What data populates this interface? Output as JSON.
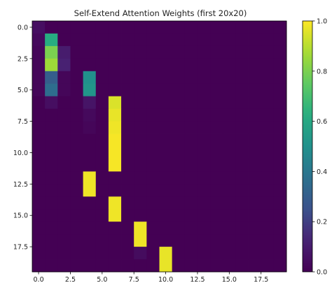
{
  "chart_data": {
    "type": "heatmap",
    "title": "Self-Extend Attention Weights (first 20x20)",
    "xlabel": "",
    "ylabel": "",
    "rows": 20,
    "cols": 20,
    "colormap": "viridis",
    "vmin": 0.0,
    "vmax": 1.0,
    "x_ticks": [
      "0.0",
      "2.5",
      "5.0",
      "7.5",
      "10.0",
      "12.5",
      "15.0",
      "17.5"
    ],
    "x_tick_values": [
      0.0,
      2.5,
      5.0,
      7.5,
      10.0,
      12.5,
      15.0,
      17.5
    ],
    "y_ticks": [
      "0.0",
      "2.5",
      "5.0",
      "7.5",
      "10.0",
      "12.5",
      "15.0",
      "17.5"
    ],
    "y_tick_values": [
      0.0,
      2.5,
      5.0,
      7.5,
      10.0,
      12.5,
      15.0,
      17.5
    ],
    "colorbar_ticks": [
      "0.0",
      "0.2",
      "0.4",
      "0.6",
      "0.8",
      "1.0"
    ],
    "colorbar_tick_values": [
      0.0,
      0.2,
      0.4,
      0.6,
      0.8,
      1.0
    ],
    "matrix": [
      [
        0.05,
        0.0,
        0.0,
        0.0,
        0.0,
        0.0,
        0.0,
        0.0,
        0.0,
        0.0,
        0.0,
        0.0,
        0.0,
        0.0,
        0.0,
        0.0,
        0.0,
        0.0,
        0.0,
        0.0
      ],
      [
        0.03,
        0.62,
        0.0,
        0.0,
        0.0,
        0.0,
        0.0,
        0.0,
        0.0,
        0.0,
        0.0,
        0.0,
        0.0,
        0.0,
        0.0,
        0.0,
        0.0,
        0.0,
        0.0,
        0.0
      ],
      [
        0.02,
        0.8,
        0.1,
        0.0,
        0.0,
        0.0,
        0.0,
        0.0,
        0.0,
        0.0,
        0.0,
        0.0,
        0.0,
        0.0,
        0.0,
        0.0,
        0.0,
        0.0,
        0.0,
        0.0
      ],
      [
        0.02,
        0.86,
        0.12,
        0.0,
        0.0,
        0.0,
        0.0,
        0.0,
        0.0,
        0.0,
        0.0,
        0.0,
        0.0,
        0.0,
        0.0,
        0.0,
        0.0,
        0.0,
        0.0,
        0.0
      ],
      [
        0.02,
        0.3,
        0.02,
        0.0,
        0.5,
        0.0,
        0.0,
        0.0,
        0.0,
        0.0,
        0.0,
        0.0,
        0.0,
        0.0,
        0.0,
        0.0,
        0.0,
        0.0,
        0.0,
        0.0
      ],
      [
        0.02,
        0.36,
        0.02,
        0.0,
        0.52,
        0.0,
        0.0,
        0.0,
        0.0,
        0.0,
        0.0,
        0.0,
        0.0,
        0.0,
        0.0,
        0.0,
        0.0,
        0.0,
        0.0,
        0.0
      ],
      [
        0.0,
        0.05,
        0.0,
        0.0,
        0.07,
        0.0,
        0.95,
        0.0,
        0.0,
        0.0,
        0.0,
        0.0,
        0.0,
        0.0,
        0.0,
        0.0,
        0.0,
        0.0,
        0.0,
        0.0
      ],
      [
        0.0,
        0.0,
        0.0,
        0.0,
        0.03,
        0.0,
        0.97,
        0.0,
        0.0,
        0.0,
        0.0,
        0.0,
        0.0,
        0.0,
        0.0,
        0.0,
        0.0,
        0.0,
        0.0,
        0.0
      ],
      [
        0.0,
        0.0,
        0.0,
        0.0,
        0.02,
        0.0,
        0.98,
        0.0,
        0.0,
        0.0,
        0.0,
        0.0,
        0.0,
        0.0,
        0.0,
        0.0,
        0.0,
        0.0,
        0.0,
        0.0
      ],
      [
        0.0,
        0.0,
        0.0,
        0.0,
        0.0,
        0.0,
        0.99,
        0.0,
        0.0,
        0.0,
        0.0,
        0.0,
        0.0,
        0.0,
        0.0,
        0.0,
        0.0,
        0.0,
        0.0,
        0.0
      ],
      [
        0.0,
        0.0,
        0.0,
        0.0,
        0.0,
        0.0,
        0.99,
        0.0,
        0.0,
        0.0,
        0.0,
        0.0,
        0.0,
        0.0,
        0.0,
        0.0,
        0.0,
        0.0,
        0.0,
        0.0
      ],
      [
        0.0,
        0.0,
        0.0,
        0.0,
        0.0,
        0.0,
        0.99,
        0.0,
        0.0,
        0.0,
        0.0,
        0.0,
        0.0,
        0.0,
        0.0,
        0.0,
        0.0,
        0.0,
        0.0,
        0.0
      ],
      [
        0.0,
        0.0,
        0.0,
        0.0,
        0.98,
        0.0,
        0.0,
        0.0,
        0.0,
        0.0,
        0.0,
        0.0,
        0.0,
        0.0,
        0.0,
        0.0,
        0.0,
        0.0,
        0.0,
        0.0
      ],
      [
        0.0,
        0.0,
        0.0,
        0.0,
        0.98,
        0.0,
        0.0,
        0.0,
        0.0,
        0.0,
        0.0,
        0.0,
        0.0,
        0.0,
        0.0,
        0.0,
        0.0,
        0.0,
        0.0,
        0.0
      ],
      [
        0.0,
        0.0,
        0.0,
        0.0,
        0.0,
        0.0,
        0.98,
        0.0,
        0.0,
        0.0,
        0.0,
        0.0,
        0.0,
        0.0,
        0.0,
        0.0,
        0.0,
        0.0,
        0.0,
        0.0
      ],
      [
        0.0,
        0.0,
        0.0,
        0.0,
        0.0,
        0.0,
        0.98,
        0.0,
        0.0,
        0.0,
        0.0,
        0.0,
        0.0,
        0.0,
        0.0,
        0.0,
        0.0,
        0.0,
        0.0,
        0.0
      ],
      [
        0.0,
        0.0,
        0.0,
        0.0,
        0.0,
        0.0,
        0.0,
        0.0,
        0.98,
        0.0,
        0.0,
        0.0,
        0.0,
        0.0,
        0.0,
        0.0,
        0.0,
        0.0,
        0.0,
        0.0
      ],
      [
        0.0,
        0.0,
        0.0,
        0.0,
        0.0,
        0.0,
        0.0,
        0.0,
        0.98,
        0.0,
        0.0,
        0.0,
        0.0,
        0.0,
        0.0,
        0.0,
        0.0,
        0.0,
        0.0,
        0.0
      ],
      [
        0.0,
        0.0,
        0.0,
        0.0,
        0.0,
        0.0,
        0.0,
        0.0,
        0.04,
        0.0,
        0.97,
        0.0,
        0.0,
        0.0,
        0.0,
        0.0,
        0.0,
        0.0,
        0.0,
        0.0
      ],
      [
        0.0,
        0.0,
        0.0,
        0.0,
        0.0,
        0.0,
        0.0,
        0.0,
        0.0,
        0.0,
        0.97,
        0.0,
        0.0,
        0.0,
        0.0,
        0.0,
        0.0,
        0.0,
        0.0,
        0.0
      ]
    ]
  }
}
